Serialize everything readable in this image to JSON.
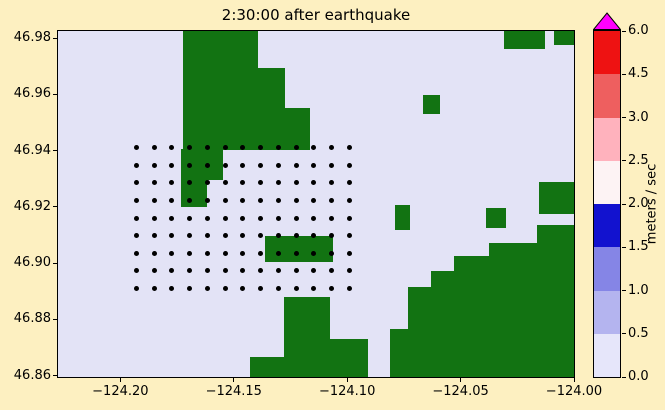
{
  "figure": {
    "background": "#fdf0c1",
    "title": "2:30:00 after earthquake"
  },
  "chart_data": {
    "type": "heatmap",
    "title": "2:30:00 after earthquake",
    "xlabel": "",
    "ylabel": "",
    "xlim": [
      -124.2275,
      -124.0
    ],
    "ylim": [
      46.8595,
      46.9825
    ],
    "x_ticks": [
      -124.2,
      -124.15,
      -124.1,
      -124.05,
      -124.0
    ],
    "x_tick_labels": [
      "−124.20",
      "−124.15",
      "−124.10",
      "−124.05",
      "−124.00"
    ],
    "y_ticks": [
      46.98,
      46.96,
      46.94,
      46.92,
      46.9,
      46.88,
      46.86
    ],
    "y_tick_labels": [
      "46.98",
      "46.96",
      "46.94",
      "46.92",
      "46.90",
      "46.88",
      "46.86"
    ],
    "water_color": "#e3e3f6",
    "land_color": "#127312",
    "marker_color": "#000000",
    "land_patches": [
      [
        -124.1722,
        -124.1393,
        46.9691,
        46.983
      ],
      [
        -124.1722,
        -124.1274,
        46.9483,
        46.9695
      ],
      [
        -124.1274,
        -124.1164,
        46.9401,
        46.955
      ],
      [
        -124.1722,
        -124.1164,
        46.9401,
        46.9487
      ],
      [
        -124.1731,
        -124.1617,
        46.92,
        46.9405
      ],
      [
        -124.1617,
        -124.1546,
        46.9296,
        46.9405
      ],
      [
        -124.0664,
        -124.0589,
        46.9529,
        46.9596
      ],
      [
        -124.031,
        -124.013,
        46.976,
        46.983
      ],
      [
        -124.009,
        -124.0,
        46.9775,
        46.983
      ],
      [
        -124.0154,
        -124.0,
        46.9175,
        46.9288
      ],
      [
        -124.0387,
        -124.0299,
        46.9126,
        46.9197
      ],
      [
        -124.0791,
        -124.0721,
        46.9119,
        46.9207
      ],
      [
        -124.1362,
        -124.1063,
        46.9003,
        46.9098
      ],
      [
        -124.0163,
        -124.0,
        46.8595,
        46.9137
      ],
      [
        -124.0374,
        -124.0163,
        46.8595,
        46.9073
      ],
      [
        -124.0528,
        -124.0374,
        46.8595,
        46.9024
      ],
      [
        -124.0629,
        -124.0528,
        46.8595,
        46.8971
      ],
      [
        -124.0734,
        -124.0629,
        46.8595,
        46.8914
      ],
      [
        -124.1279,
        -124.1077,
        46.8731,
        46.8879
      ],
      [
        -124.1279,
        -124.0909,
        46.8595,
        46.8731
      ],
      [
        -124.1428,
        -124.1279,
        46.8595,
        46.8667
      ],
      [
        -124.0813,
        -124.0734,
        46.8595,
        46.8766
      ]
    ],
    "gauge_grid": {
      "lon_min": -124.193,
      "lon_max": -124.099,
      "cols": 13,
      "lat_min": 46.891,
      "lat_max": 46.941,
      "rows": 9
    },
    "colorbar": {
      "label": "meters / sec",
      "boundaries": [
        0.0,
        0.5,
        1.0,
        1.5,
        2.0,
        2.5,
        3.0,
        4.5,
        6.0
      ],
      "tick_labels": [
        "0.0",
        "0.5",
        "1.0",
        "1.5",
        "2.0",
        "2.5",
        "3.0",
        "4.5",
        "6.0"
      ],
      "segment_colors": [
        "#e6e6fa",
        "#b4b4ef",
        "#8585e6",
        "#1212cf",
        "#fdf3f4",
        "#ffb2bd",
        "#ee5f5f",
        "#ee1212"
      ],
      "over_color": "#ff00ff"
    }
  }
}
